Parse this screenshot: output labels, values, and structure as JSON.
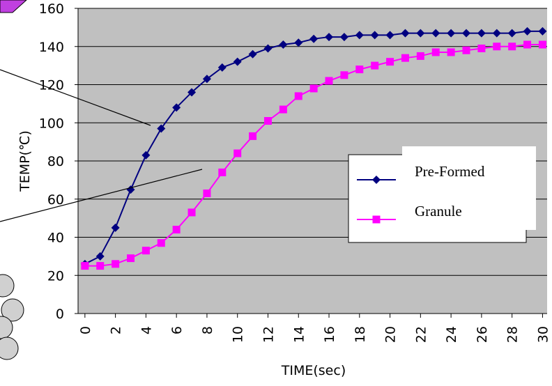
{
  "chart_data": {
    "type": "line",
    "x": [
      0,
      1,
      2,
      3,
      4,
      5,
      6,
      7,
      8,
      9,
      10,
      11,
      12,
      13,
      14,
      15,
      16,
      17,
      18,
      19,
      20,
      21,
      22,
      23,
      24,
      25,
      26,
      27,
      28,
      29,
      30
    ],
    "series": [
      {
        "name": "Pre-Formed",
        "color": "#000080",
        "marker": "diamond",
        "values": [
          26,
          30,
          45,
          65,
          83,
          97,
          108,
          116,
          123,
          129,
          132,
          136,
          139,
          141,
          142,
          144,
          145,
          145,
          146,
          146,
          146,
          147,
          147,
          147,
          147,
          147,
          147,
          147,
          147,
          148,
          148
        ]
      },
      {
        "name": "Granule",
        "color": "#ff00ff",
        "marker": "square",
        "values": [
          25,
          25,
          26,
          29,
          33,
          37,
          44,
          53,
          63,
          74,
          84,
          93,
          101,
          107,
          114,
          118,
          122,
          125,
          128,
          130,
          132,
          134,
          135,
          137,
          137,
          138,
          139,
          140,
          140,
          141,
          141
        ]
      }
    ],
    "xlabel": "TIME(sec)",
    "ylabel": "TEMP(℃)",
    "xlim": [
      -0.45,
      30.3
    ],
    "ylim": [
      0,
      160
    ],
    "xticks": [
      0,
      2,
      4,
      6,
      8,
      10,
      12,
      14,
      16,
      18,
      20,
      22,
      24,
      26,
      28,
      30
    ],
    "yticks": [
      0,
      20,
      40,
      60,
      80,
      100,
      120,
      140,
      160
    ],
    "grid": true,
    "background": "#c0c0c0"
  }
}
